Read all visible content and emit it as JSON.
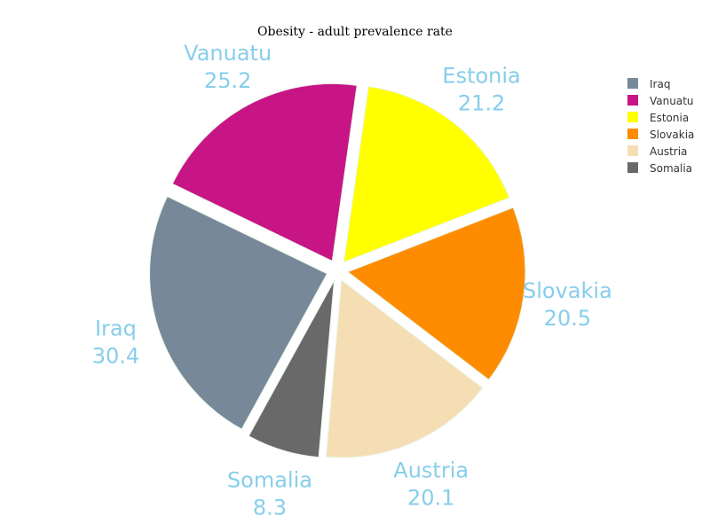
{
  "chart_data": {
    "type": "pie",
    "title": "Obesity - adult prevalence rate",
    "legend_position": "top-right",
    "slice_order": [
      "Iraq",
      "Vanuatu",
      "Estonia",
      "Slovakia",
      "Austria",
      "Somalia"
    ],
    "slices": [
      {
        "label": "Iraq",
        "value": 30.4,
        "value_text": "30.4",
        "color": "#778899"
      },
      {
        "label": "Vanuatu",
        "value": 25.2,
        "value_text": "25.2",
        "color": "#c71585"
      },
      {
        "label": "Estonia",
        "value": 21.2,
        "value_text": "21.2",
        "color": "#ffff00"
      },
      {
        "label": "Slovakia",
        "value": 20.5,
        "value_text": "20.5",
        "color": "#ff8c00"
      },
      {
        "label": "Austria",
        "value": 20.1,
        "value_text": "20.1",
        "color": "#f5deb3"
      },
      {
        "label": "Somalia",
        "value": 8.3,
        "value_text": "8.3",
        "color": "#696969"
      }
    ],
    "label_color": "#87ceeb"
  }
}
